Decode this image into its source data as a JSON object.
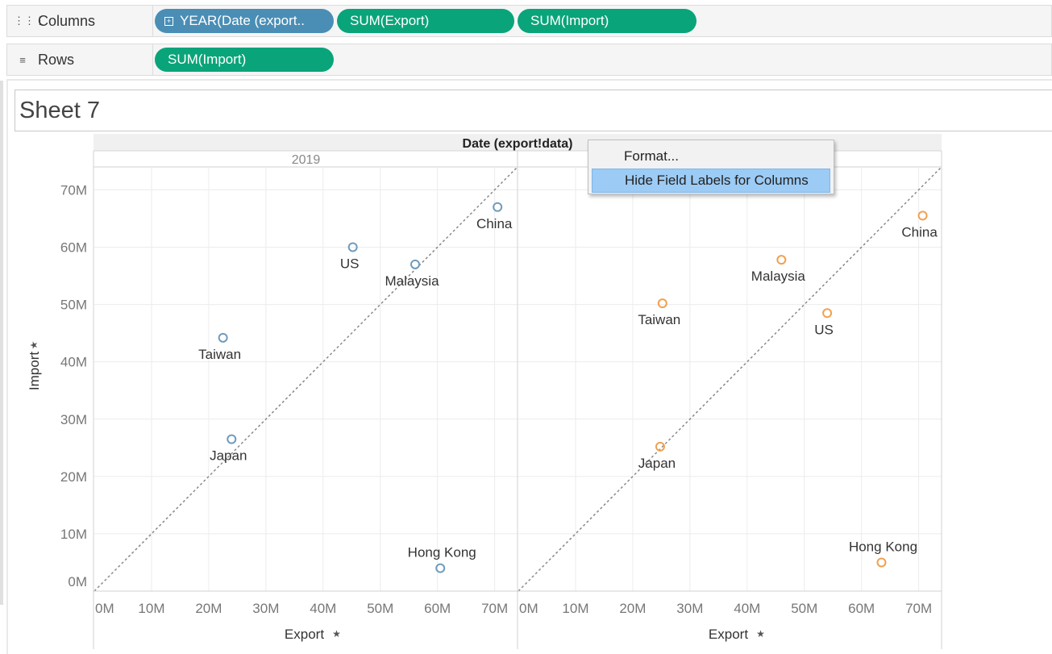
{
  "shelves": {
    "columns": {
      "label": "Columns",
      "icon": "columns-icon",
      "pills": [
        {
          "label": "YEAR(Date (export..",
          "type": "discrete",
          "icon": "expand-plus-icon"
        },
        {
          "label": "SUM(Export)",
          "type": "continuous"
        },
        {
          "label": "SUM(Import)",
          "type": "continuous"
        }
      ]
    },
    "rows": {
      "label": "Rows",
      "icon": "rows-icon",
      "pills": [
        {
          "label": "SUM(Import)",
          "type": "continuous"
        }
      ]
    }
  },
  "sheet": {
    "title": "Sheet 7"
  },
  "context_menu": {
    "items": [
      "Format...",
      "Hide Field Labels for Columns"
    ],
    "highlighted": 1
  },
  "colors": {
    "discrete_pill": "#4a8eb5",
    "continuous_pill": "#0aa47a",
    "series_2019": "#6f9bbd",
    "series_second": "#f0a150",
    "menu_highlight": "#9ccbf5"
  },
  "chart_data": {
    "type": "scatter",
    "header_title": "Date (export!data)",
    "panes": [
      {
        "header": "2019",
        "color": "#6f9bbd",
        "points": [
          {
            "label": "China",
            "x": 70.5,
            "y": 67
          },
          {
            "label": "US",
            "x": 45.2,
            "y": 60
          },
          {
            "label": "Malaysia",
            "x": 56.1,
            "y": 57
          },
          {
            "label": "Taiwan",
            "x": 22.5,
            "y": 44.2
          },
          {
            "label": "Japan",
            "x": 24.0,
            "y": 26.5
          },
          {
            "label": "Hong Kong",
            "x": 60.5,
            "y": 4
          }
        ],
        "reference_line": {
          "from": [
            0,
            0
          ],
          "to": [
            74,
            74
          ]
        }
      },
      {
        "header": "",
        "color": "#f0a150",
        "points": [
          {
            "label": "China",
            "x": 70.7,
            "y": 65.5
          },
          {
            "label": "Malaysia",
            "x": 46.0,
            "y": 57.8
          },
          {
            "label": "Taiwan",
            "x": 25.2,
            "y": 50.2
          },
          {
            "label": "US",
            "x": 54.0,
            "y": 48.5
          },
          {
            "label": "Japan",
            "x": 24.8,
            "y": 25.2
          },
          {
            "label": "Hong Kong",
            "x": 63.5,
            "y": 5
          }
        ],
        "reference_line": {
          "from": [
            0,
            0
          ],
          "to": [
            74,
            74
          ]
        }
      }
    ],
    "x_axis": {
      "label": "Export",
      "pin_icon": "pin-icon",
      "ticks": [
        "0M",
        "10M",
        "20M",
        "30M",
        "40M",
        "50M",
        "60M",
        "70M"
      ],
      "range": [
        0,
        74
      ]
    },
    "y_axis": {
      "label": "Import",
      "pin_icon": "pin-icon",
      "ticks": [
        "0M",
        "10M",
        "20M",
        "30M",
        "40M",
        "50M",
        "60M",
        "70M"
      ],
      "range": [
        0,
        74
      ]
    },
    "grid": true
  }
}
